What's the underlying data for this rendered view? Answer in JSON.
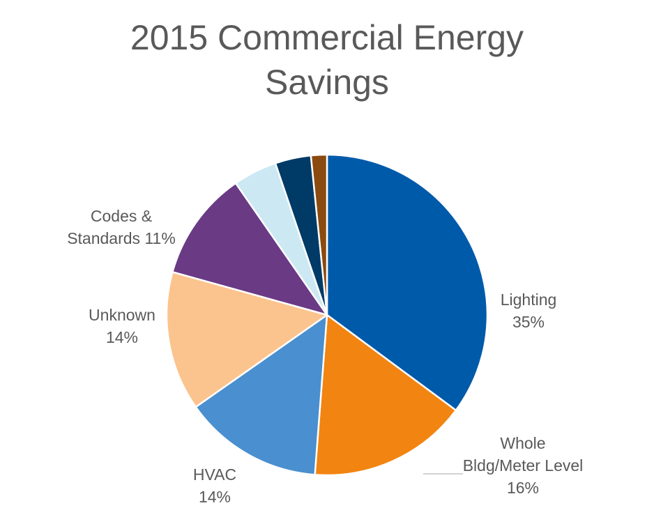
{
  "chart_data": {
    "type": "pie",
    "title": [
      "2015 Commercial Energy",
      "Savings"
    ],
    "start_angle_deg": 0,
    "direction": "clockwise",
    "slices": [
      {
        "name": "Lighting",
        "value": 35,
        "pct_label": "35%",
        "color": "#005AAA",
        "label_lines": [
          "Lighting",
          "35%"
        ]
      },
      {
        "name": "Whole Bldg/Meter Level",
        "value": 16,
        "pct_label": "16%",
        "color": "#F28411",
        "label_lines": [
          "Whole",
          "Bldg/Meter Level",
          "16%"
        ]
      },
      {
        "name": "HVAC",
        "value": 14,
        "pct_label": "14%",
        "color": "#4A8FCF",
        "label_lines": [
          "HVAC",
          "14%"
        ]
      },
      {
        "name": "Unknown",
        "value": 14,
        "pct_label": "14%",
        "color": "#FBC48E",
        "label_lines": [
          "Unknown",
          "14%"
        ]
      },
      {
        "name": "Codes & Standards",
        "value": 11,
        "pct_label": "11%",
        "color": "#6A3A85",
        "label_lines": [
          "Codes &",
          "Standards 11%"
        ]
      },
      {
        "name": "",
        "value": 4.4,
        "pct_label": "",
        "color": "#CCE8F3",
        "label_lines": []
      },
      {
        "name": "",
        "value": 3.6,
        "pct_label": "",
        "color": "#003A66",
        "label_lines": []
      },
      {
        "name": "",
        "value": 1.6,
        "pct_label": "",
        "color": "#8B4A0F",
        "label_lines": []
      }
    ]
  }
}
